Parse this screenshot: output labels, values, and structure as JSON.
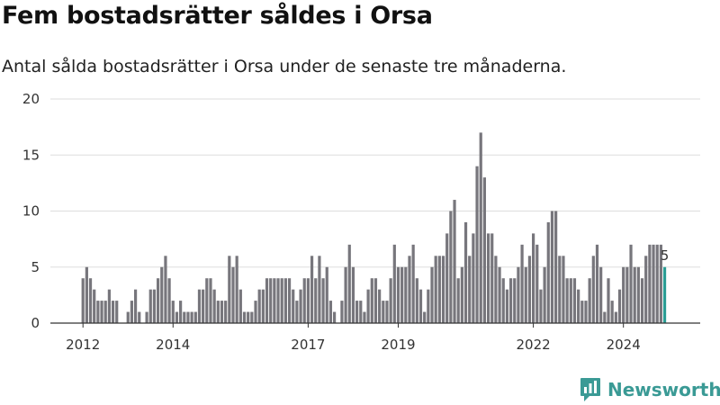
{
  "header": {
    "title": "Fem bostadsrätter såldes i Orsa",
    "subtitle": "Antal sålda bostadsrätter i Orsa under de senaste tre månaderna."
  },
  "brand": {
    "name": "Newsworthy",
    "logo_icon": "newsworthy-logo-icon",
    "color": "#3a9a95"
  },
  "colors": {
    "bar": "#77767c",
    "highlight": "#2a9d94",
    "grid": "#dddddd",
    "axis": "#333333"
  },
  "chart_data": {
    "type": "bar",
    "ylim": [
      0,
      20
    ],
    "yticks": [
      0,
      5,
      10,
      15,
      20
    ],
    "xticks": [
      {
        "label": "2012",
        "index": 0
      },
      {
        "label": "2014",
        "index": 24
      },
      {
        "label": "2017",
        "index": 60
      },
      {
        "label": "2019",
        "index": 84
      },
      {
        "label": "2022",
        "index": 120
      },
      {
        "label": "2024",
        "index": 144
      }
    ],
    "grid": true,
    "values": [
      4,
      5,
      4,
      3,
      2,
      2,
      2,
      3,
      2,
      2,
      0,
      0,
      1,
      2,
      3,
      1,
      0,
      1,
      3,
      3,
      4,
      5,
      6,
      4,
      2,
      1,
      2,
      1,
      1,
      1,
      1,
      3,
      3,
      4,
      4,
      3,
      2,
      2,
      2,
      6,
      5,
      6,
      3,
      1,
      1,
      1,
      2,
      3,
      3,
      4,
      4,
      4,
      4,
      4,
      4,
      4,
      3,
      2,
      3,
      4,
      4,
      6,
      4,
      6,
      4,
      5,
      2,
      1,
      0,
      2,
      5,
      7,
      5,
      2,
      2,
      1,
      3,
      4,
      4,
      3,
      2,
      2,
      4,
      7,
      5,
      5,
      5,
      6,
      7,
      4,
      3,
      1,
      3,
      5,
      6,
      6,
      6,
      8,
      10,
      11,
      4,
      5,
      9,
      6,
      8,
      14,
      17,
      13,
      8,
      8,
      6,
      5,
      4,
      3,
      4,
      4,
      5,
      7,
      5,
      6,
      8,
      7,
      3,
      5,
      9,
      10,
      10,
      6,
      6,
      4,
      4,
      4,
      3,
      2,
      2,
      4,
      6,
      7,
      5,
      1,
      4,
      2,
      1,
      3,
      5,
      5,
      7,
      5,
      5,
      4,
      6,
      7,
      7,
      7,
      7,
      5
    ],
    "highlight_index": 155,
    "highlight_label": "5"
  }
}
